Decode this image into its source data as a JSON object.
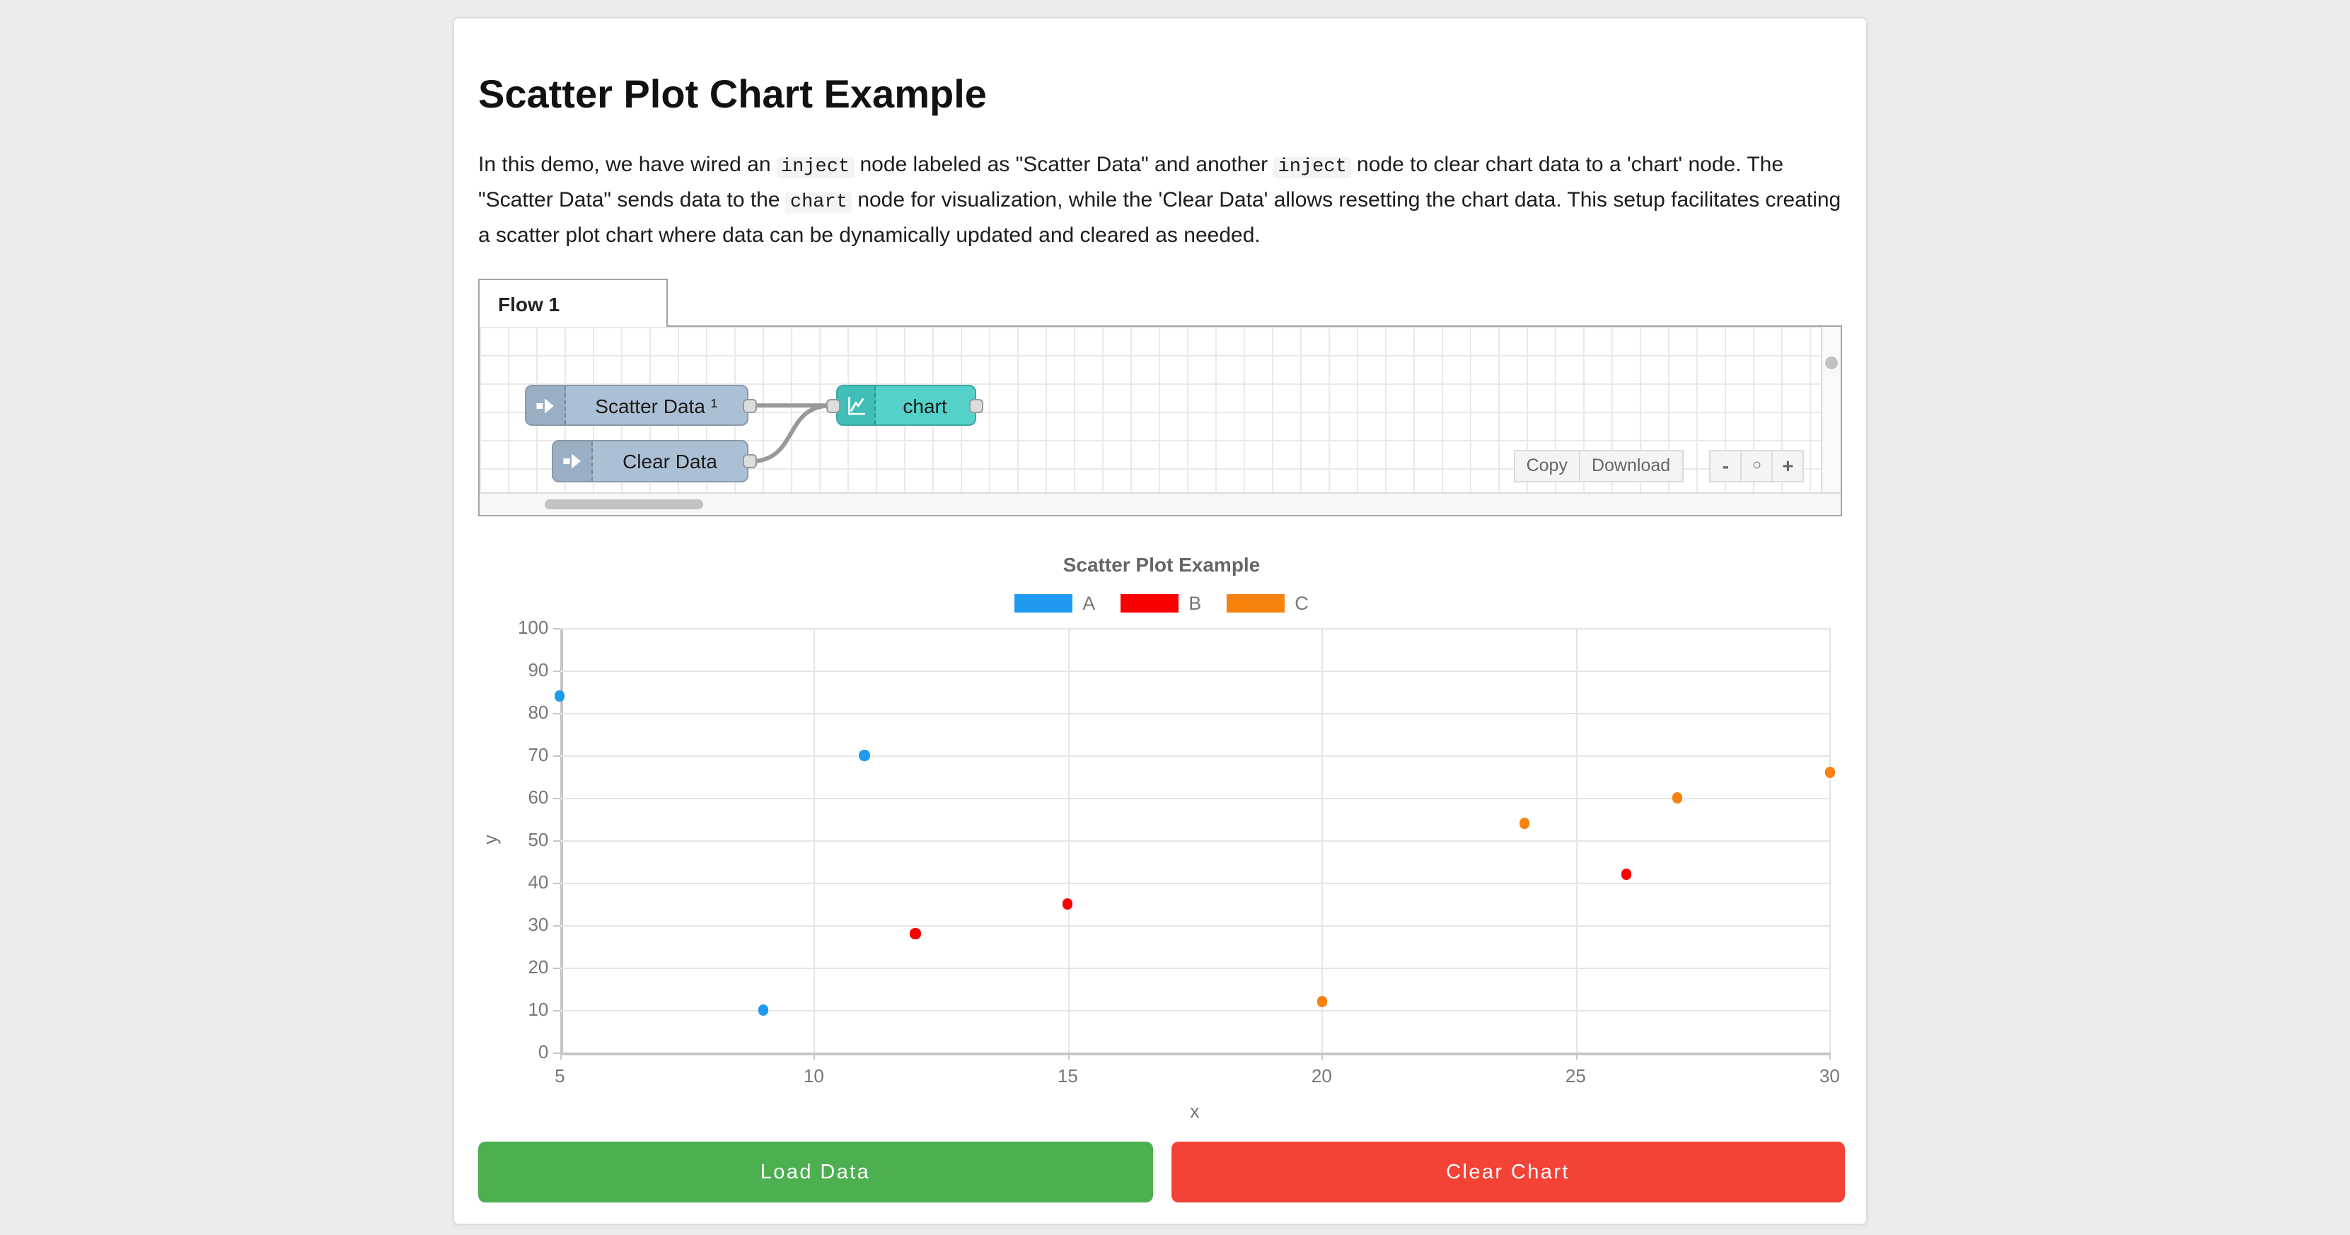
{
  "page_title": "Scatter Plot Chart Example",
  "intro": {
    "segments": [
      {
        "t": "In this demo, we have wired an ",
        "code": false
      },
      {
        "t": "inject",
        "code": true
      },
      {
        "t": " node labeled as \"Scatter Data\" and another ",
        "code": false
      },
      {
        "t": "inject",
        "code": true
      },
      {
        "t": " node to clear chart data to a 'chart' node. The \"Scatter Data\" sends data to the ",
        "code": false
      },
      {
        "t": "chart",
        "code": true
      },
      {
        "t": " node for visualization, while the 'Clear Data' allows resetting the chart data. This setup facilitates creating a scatter plot chart where data can be dynamically updated and cleared as needed.",
        "code": false
      }
    ]
  },
  "flow": {
    "tab_label": "Flow 1",
    "nodes": {
      "scatter": {
        "label": "Scatter Data ¹",
        "type": "inject"
      },
      "clear": {
        "label": "Clear Data",
        "type": "inject"
      },
      "chart": {
        "label": "chart",
        "type": "chart"
      }
    },
    "toolbar": {
      "copy_label": "Copy",
      "download_label": "Download",
      "zoom_out_label": "-",
      "zoom_reset_label": "○",
      "zoom_in_label": "+"
    },
    "colors": {
      "inject_body": "#ABC0D4",
      "inject_icon_bg": "#9AAFC3",
      "chart_body": "#54D1C9",
      "chart_icon_bg": "#3FBFB7",
      "wire": "#999999"
    }
  },
  "chart_data": {
    "type": "scatter",
    "title": "Scatter Plot Example",
    "xlabel": "x",
    "ylabel": "y",
    "xlim": [
      5,
      30
    ],
    "ylim": [
      0,
      100
    ],
    "x_ticks": [
      5,
      10,
      15,
      20,
      25,
      30
    ],
    "y_ticks": [
      0,
      10,
      20,
      30,
      40,
      50,
      60,
      70,
      80,
      90,
      100
    ],
    "grid": true,
    "legend_position": "top",
    "series": [
      {
        "name": "A",
        "color": "#1E9BF0",
        "points": [
          [
            5,
            84
          ],
          [
            9,
            10
          ],
          [
            11,
            70
          ]
        ]
      },
      {
        "name": "B",
        "color": "#FA0000",
        "points": [
          [
            12,
            28
          ],
          [
            15,
            35
          ],
          [
            26,
            42
          ]
        ]
      },
      {
        "name": "C",
        "color": "#F8820E",
        "points": [
          [
            20,
            12
          ],
          [
            24,
            54
          ],
          [
            27,
            60
          ],
          [
            30,
            66
          ]
        ]
      }
    ]
  },
  "actions": {
    "load_label": "Load Data",
    "clear_label": "Clear Chart",
    "load_color": "#4CAF50",
    "clear_color": "#F44336"
  }
}
